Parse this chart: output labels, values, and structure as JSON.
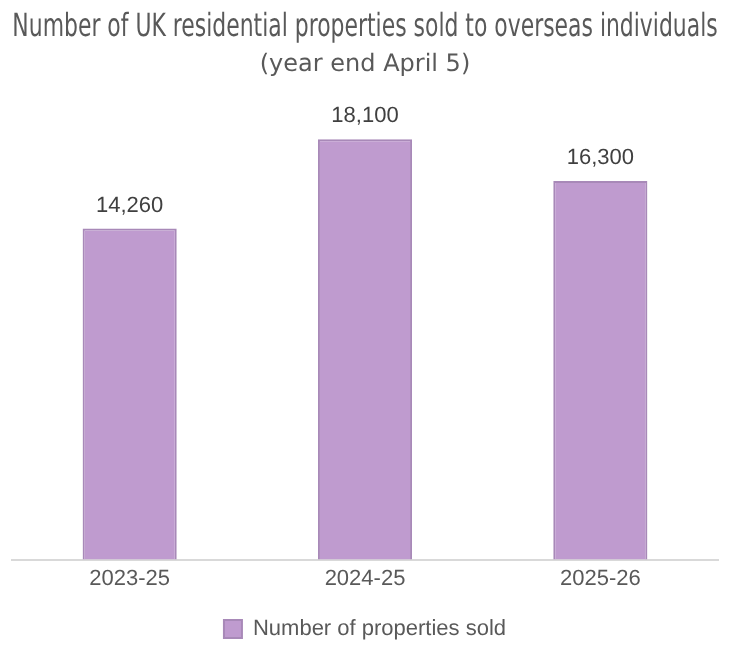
{
  "chart_data": {
    "type": "bar",
    "title": "Number of UK residential properties sold to overseas individuals",
    "subtitle": "(year end April 5)",
    "categories": [
      "2023-25",
      "2024-25",
      "2025-26"
    ],
    "series": [
      {
        "name": "Number of properties sold",
        "color": "#bf9bcf",
        "values": [
          14260,
          18100,
          16300
        ],
        "value_labels": [
          "14,260",
          "18,100",
          "16,300"
        ]
      }
    ],
    "legend": "bottom",
    "grid": false,
    "tick_labels": "x"
  }
}
